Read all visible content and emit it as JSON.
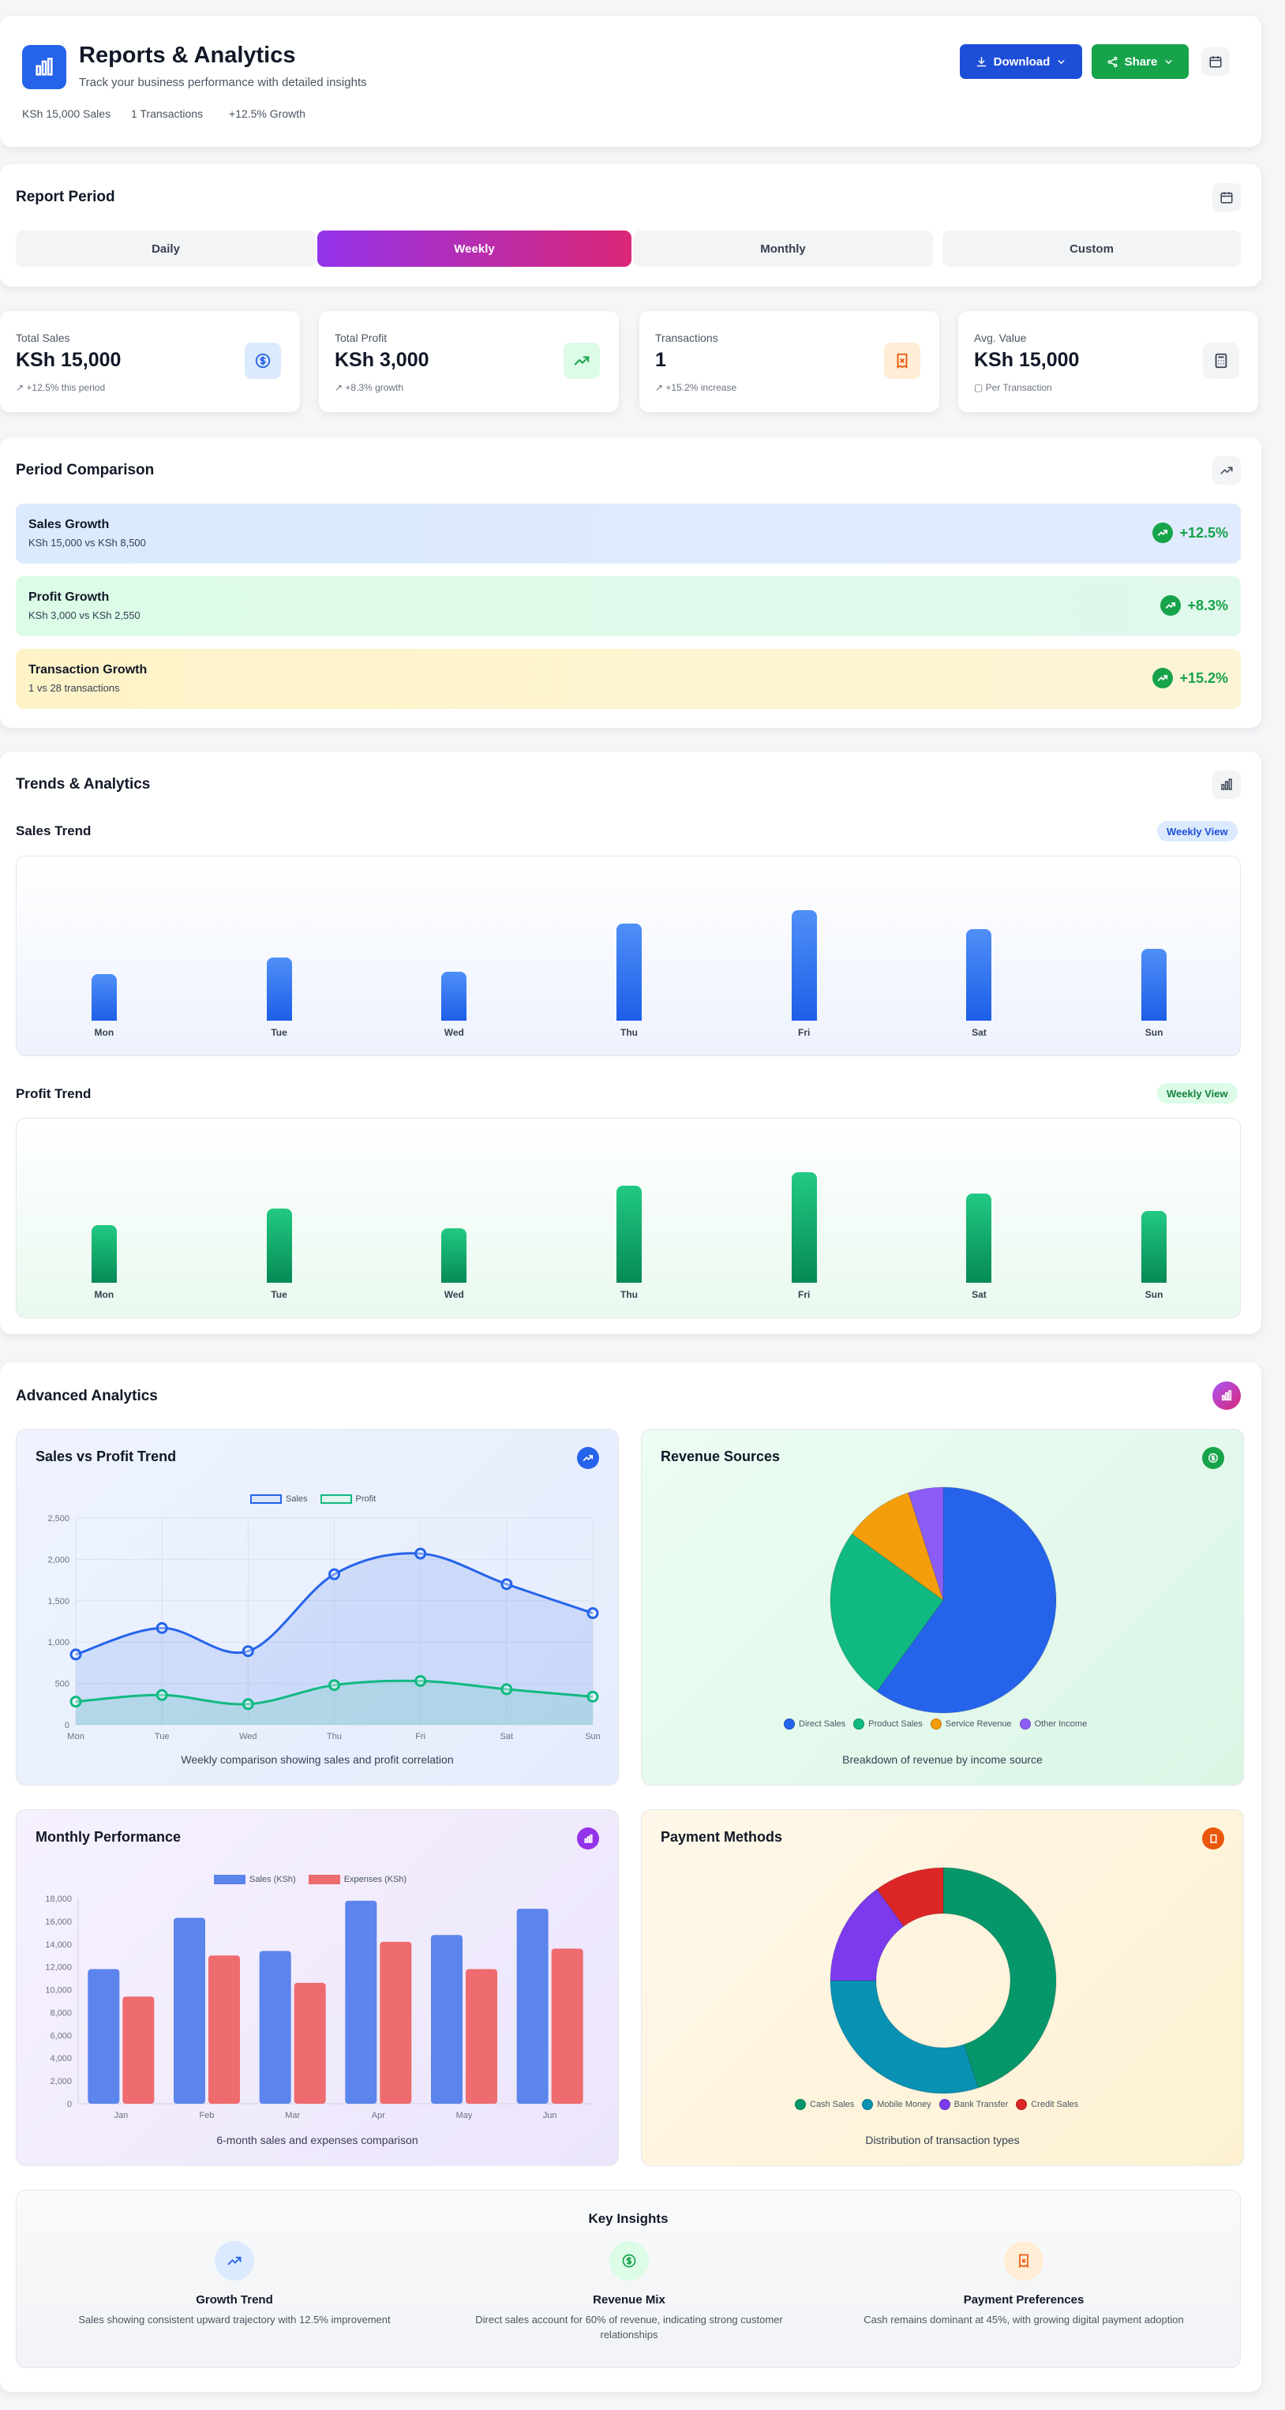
{
  "header": {
    "title": "Reports & Analytics",
    "subtitle": "Track your business performance with detailed insights",
    "meta": [
      "KSh 15,000 Sales",
      "1 Transactions",
      "+12.5% Growth"
    ],
    "download_label": "Download",
    "share_label": "Share"
  },
  "period": {
    "title": "Report Period",
    "tabs": [
      "Daily",
      "Weekly",
      "Monthly",
      "Custom"
    ],
    "active": "Weekly"
  },
  "stats": [
    {
      "label": "Total Sales",
      "value": "KSh 15,000",
      "sub": "+12.5% this period",
      "icon": "dollar-icon"
    },
    {
      "label": "Total Profit",
      "value": "KSh 3,000",
      "sub": "+8.3% growth",
      "icon": "trending-up-icon"
    },
    {
      "label": "Transactions",
      "value": "1",
      "sub": "+15.2% increase",
      "icon": "receipt-icon"
    },
    {
      "label": "Avg. Value",
      "value": "KSh 15,000",
      "sub": "Per Transaction",
      "icon": "calculator-icon"
    }
  ],
  "comparison": {
    "title": "Period Comparison",
    "items": [
      {
        "title": "Sales Growth",
        "detail": "KSh 15,000 vs KSh 8,500",
        "change": "+12.5%"
      },
      {
        "title": "Profit Growth",
        "detail": "KSh 3,000 vs KSh 2,550",
        "change": "+8.3%"
      },
      {
        "title": "Transaction Growth",
        "detail": "1 vs 28 transactions",
        "change": "+15.2%"
      }
    ]
  },
  "trends": {
    "title": "Trends & Analytics",
    "sales_title": "Sales Trend",
    "profit_title": "Profit Trend",
    "view_label": "Weekly View",
    "days": [
      "Mon",
      "Tue",
      "Wed",
      "Thu",
      "Fri",
      "Sat",
      "Sun"
    ],
    "sales_levels": [
      0.42,
      0.57,
      0.44,
      0.88,
      1.0,
      0.83,
      0.65
    ],
    "profit_levels": [
      0.52,
      0.67,
      0.49,
      0.88,
      1.0,
      0.81,
      0.65
    ]
  },
  "advanced": {
    "title": "Advanced Analytics",
    "panels": {
      "sales_vs_profit": {
        "title": "Sales vs Profit Trend",
        "caption": "Weekly comparison showing sales and profit correlation"
      },
      "revenue_sources": {
        "title": "Revenue Sources",
        "caption": "Breakdown of revenue by income source"
      },
      "monthly_performance": {
        "title": "Monthly Performance",
        "caption": "6-month sales and expenses comparison"
      },
      "payment_methods": {
        "title": "Payment Methods",
        "caption": "Distribution of transaction types"
      }
    }
  },
  "chart_data": [
    {
      "type": "line",
      "title": "Sales vs Profit Trend",
      "categories": [
        "Mon",
        "Tue",
        "Wed",
        "Thu",
        "Fri",
        "Sat",
        "Sun"
      ],
      "yticks": [
        "0",
        "500",
        "1,000",
        "1,500",
        "2,000",
        "2,500"
      ],
      "ylim": [
        0,
        2500
      ],
      "series": [
        {
          "name": "Sales",
          "values": [
            850,
            1170,
            890,
            1820,
            2070,
            1700,
            1350
          ],
          "color": "#2563eb"
        },
        {
          "name": "Profit",
          "values": [
            280,
            360,
            250,
            480,
            530,
            430,
            340
          ],
          "color": "#10b981"
        }
      ],
      "legend": "top-center",
      "grid": true
    },
    {
      "type": "pie",
      "title": "Revenue Sources",
      "labels": [
        "Direct Sales",
        "Product Sales",
        "Service Revenue",
        "Other Income"
      ],
      "values": [
        60,
        25,
        10,
        5
      ],
      "colors": [
        "#2563eb",
        "#10b981",
        "#f59e0b",
        "#8b5cf6"
      ],
      "legend": "bottom"
    },
    {
      "type": "bar",
      "title": "Monthly Performance",
      "categories": [
        "Jan",
        "Feb",
        "Mar",
        "Apr",
        "May",
        "Jun"
      ],
      "yticks": [
        "0",
        "2,000",
        "4,000",
        "6,000",
        "8,000",
        "10,000",
        "12,000",
        "14,000",
        "16,000",
        "18,000"
      ],
      "ylim": [
        0,
        18000
      ],
      "series": [
        {
          "name": "Sales (KSh)",
          "values": [
            11800,
            16300,
            13400,
            17800,
            14800,
            17100
          ],
          "color": "#5b84ec"
        },
        {
          "name": "Expenses (KSh)",
          "values": [
            9400,
            13000,
            10600,
            14200,
            11800,
            13600
          ],
          "color": "#ee6b6e"
        }
      ],
      "legend": "top-center",
      "grid": false
    },
    {
      "type": "pie",
      "title": "Payment Methods",
      "labels": [
        "Cash Sales",
        "Mobile Money",
        "Bank Transfer",
        "Credit Sales"
      ],
      "values": [
        45,
        30,
        15,
        10
      ],
      "colors": [
        "#059669",
        "#0891b2",
        "#7c3aed",
        "#dc2626"
      ],
      "legend": "bottom",
      "donut": true
    }
  ],
  "insights": {
    "title": "Key Insights",
    "items": [
      {
        "title": "Growth Trend",
        "text": "Sales showing consistent upward trajectory with 12.5% improvement"
      },
      {
        "title": "Revenue Mix",
        "text": "Direct sales account for 60% of revenue, indicating strong customer relationships"
      },
      {
        "title": "Payment Preferences",
        "text": "Cash remains dominant at 45%, with growing digital payment adoption"
      }
    ]
  }
}
